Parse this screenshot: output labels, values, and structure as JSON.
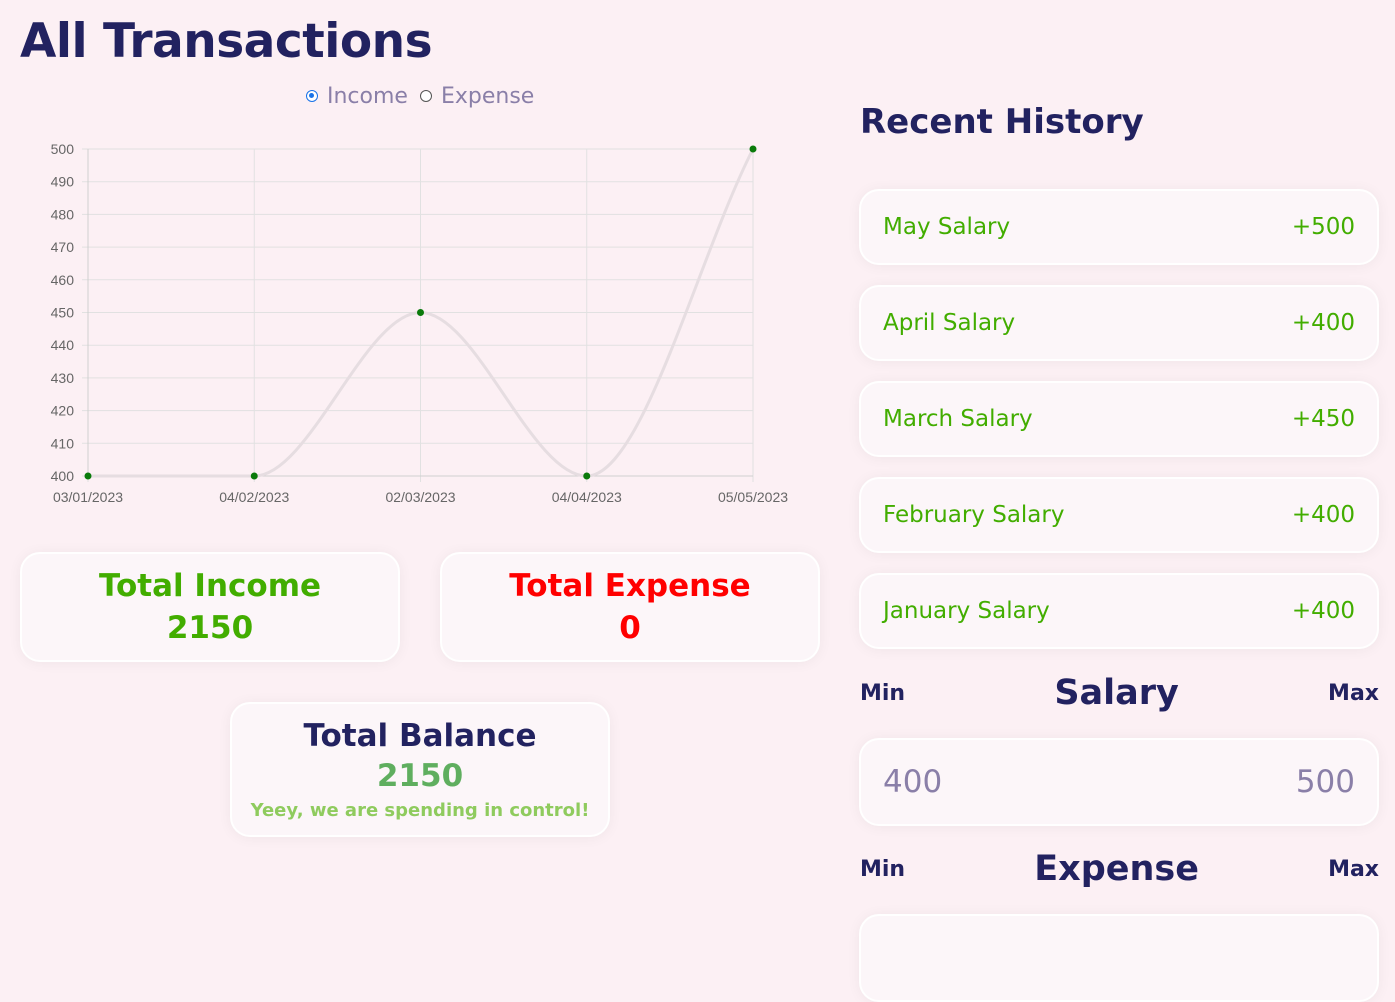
{
  "page": {
    "title": "All Transactions"
  },
  "filter": {
    "income_label": "Income",
    "expense_label": "Expense",
    "selected": "Income"
  },
  "chart_data": {
    "type": "line",
    "x": [
      "03/01/2023",
      "04/02/2023",
      "02/03/2023",
      "04/04/2023",
      "05/05/2023"
    ],
    "series": [
      {
        "values": [
          400,
          400,
          450,
          400,
          500
        ]
      }
    ],
    "yticks": [
      400,
      410,
      420,
      430,
      440,
      450,
      460,
      470,
      480,
      490,
      500
    ],
    "ylim": [
      400,
      500
    ],
    "grid": true,
    "line_color": "#e6dde1",
    "point_color": "#0a7a0a",
    "title": "",
    "xlabel": "",
    "ylabel": ""
  },
  "totals": {
    "income_label": "Total Income",
    "income_value": "2150",
    "expense_label": "Total Expense",
    "expense_value": "0",
    "balance_label": "Total Balance",
    "balance_value": "2150",
    "balance_message": "Yeey, we are spending in control!"
  },
  "history": {
    "title": "Recent History",
    "items": [
      {
        "name": "May Salary",
        "amount": "+500"
      },
      {
        "name": "April Salary",
        "amount": "+400"
      },
      {
        "name": "March Salary",
        "amount": "+450"
      },
      {
        "name": "February Salary",
        "amount": "+400"
      },
      {
        "name": "January Salary",
        "amount": "+400"
      }
    ]
  },
  "salary_range": {
    "min_label": "Min",
    "title": "Salary",
    "max_label": "Max",
    "min_value": "400",
    "max_value": "500"
  },
  "expense_range": {
    "min_label": "Min",
    "title": "Expense",
    "max_label": "Max"
  },
  "colors": {
    "income": "#42ad00",
    "expense": "#ff0000",
    "primary": "#222260",
    "background": "#fcf0f4"
  }
}
